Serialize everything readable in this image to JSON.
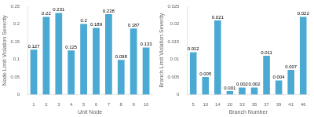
{
  "chart_data": [
    {
      "type": "bar",
      "categories": [
        "1",
        "2",
        "3",
        "4",
        "5",
        "6",
        "7",
        "8",
        "9",
        "10"
      ],
      "values": [
        0.127,
        0.22,
        0.231,
        0.125,
        0.2,
        0.189,
        0.228,
        0.098,
        0.187,
        0.133
      ],
      "color": "#4BAAD3",
      "xlabel": "Unit Node",
      "ylabel": "Node Limit Violation Severity",
      "ylim": [
        0,
        0.25
      ],
      "yticks": [
        0,
        0.05,
        0.1,
        0.15,
        0.2,
        0.25
      ],
      "grid": false,
      "data_labels": true
    },
    {
      "type": "bar",
      "categories": [
        "5",
        "10",
        "14",
        "20",
        "33",
        "35",
        "37",
        "39",
        "41",
        "46"
      ],
      "values": [
        0.012,
        0.005,
        0.021,
        0.001,
        0.002,
        0.002,
        0.011,
        0.004,
        0.007,
        0.022
      ],
      "color": "#4BAAD3",
      "xlabel": "Branch Number",
      "ylabel": "Branch Limit Violation Severity",
      "ylim": [
        0,
        0.025
      ],
      "yticks": [
        0,
        0.005,
        0.01,
        0.015,
        0.02,
        0.025
      ],
      "grid": false,
      "data_labels": true
    }
  ]
}
